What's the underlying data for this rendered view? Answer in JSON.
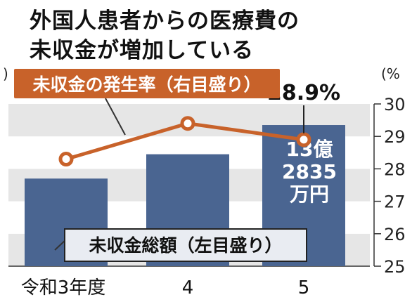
{
  "title_lines": [
    "外国人患者からの医療費の",
    "未収金が増加している"
  ],
  "chart_data": {
    "type": "bar",
    "categories": [
      "令和3年度",
      "4",
      "5"
    ],
    "left_axis": {
      "unit": ")",
      "note": "total unpaid amount, scale not printed"
    },
    "right_axis": {
      "unit": "(%",
      "ticks": [
        "25",
        "26",
        "27",
        "28",
        "29",
        "30"
      ],
      "ylim": [
        25,
        30
      ]
    },
    "series": [
      {
        "name": "未収金総額（左目盛り）",
        "kind": "bar",
        "color": "#4a6591",
        "values_relative": [
          0.54,
          0.69,
          0.87
        ],
        "labels": [
          "",
          "",
          "13億\n2835\n万円"
        ]
      },
      {
        "name": "未収金の発生率（右目盛り）",
        "kind": "line",
        "color": "#c8622a",
        "values": [
          28.3,
          29.4,
          28.9
        ],
        "labels": [
          "",
          "",
          "28.9%"
        ]
      }
    ],
    "legend_line": "未収金の発生率（右目盛り）",
    "legend_bar": "未収金総額（左目盛り）",
    "grid": true
  }
}
